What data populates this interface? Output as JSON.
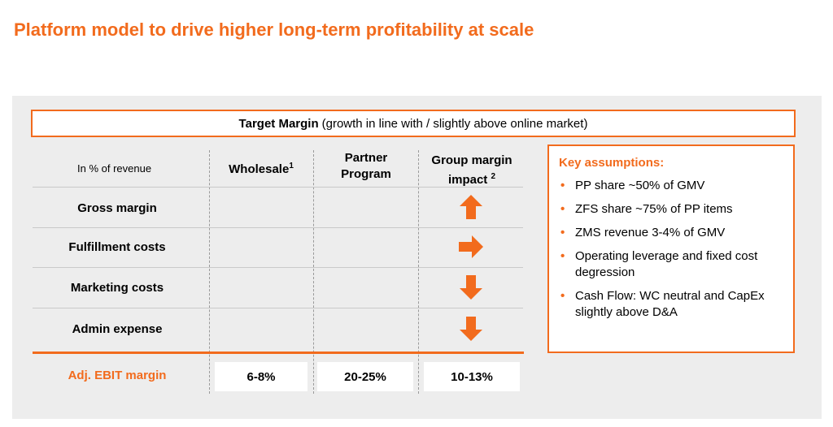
{
  "title": "Platform model to drive higher long-term profitability at scale",
  "target": {
    "label": "Target Margin",
    "note": "(growth in line with / slightly above online market)"
  },
  "table": {
    "row_header": "In % of revenue",
    "columns": [
      {
        "label": "Wholesale",
        "sup": "1"
      },
      {
        "label_line1": "Partner",
        "label_line2": "Program"
      },
      {
        "label_line1": "Group margin",
        "label_line2": "impact",
        "sup": "2"
      }
    ],
    "rows": [
      {
        "label": "Gross margin",
        "impact": "up"
      },
      {
        "label": "Fulfillment costs",
        "impact": "right"
      },
      {
        "label": "Marketing costs",
        "impact": "down"
      },
      {
        "label": "Admin expense",
        "impact": "down"
      }
    ],
    "ebit": {
      "label": "Adj. EBIT margin",
      "wholesale": "6-8%",
      "partner": "20-25%",
      "group": "10-13%"
    }
  },
  "assumptions": {
    "title": "Key assumptions:",
    "items": [
      "PP share ~50% of GMV",
      "ZFS share ~75% of PP items",
      "ZMS revenue 3-4% of GMV",
      "Operating leverage and fixed cost degression",
      "Cash Flow: WC neutral and CapEx slightly above D&A"
    ]
  },
  "colors": {
    "accent": "#F26B1D",
    "panel": "#EDEDED"
  }
}
